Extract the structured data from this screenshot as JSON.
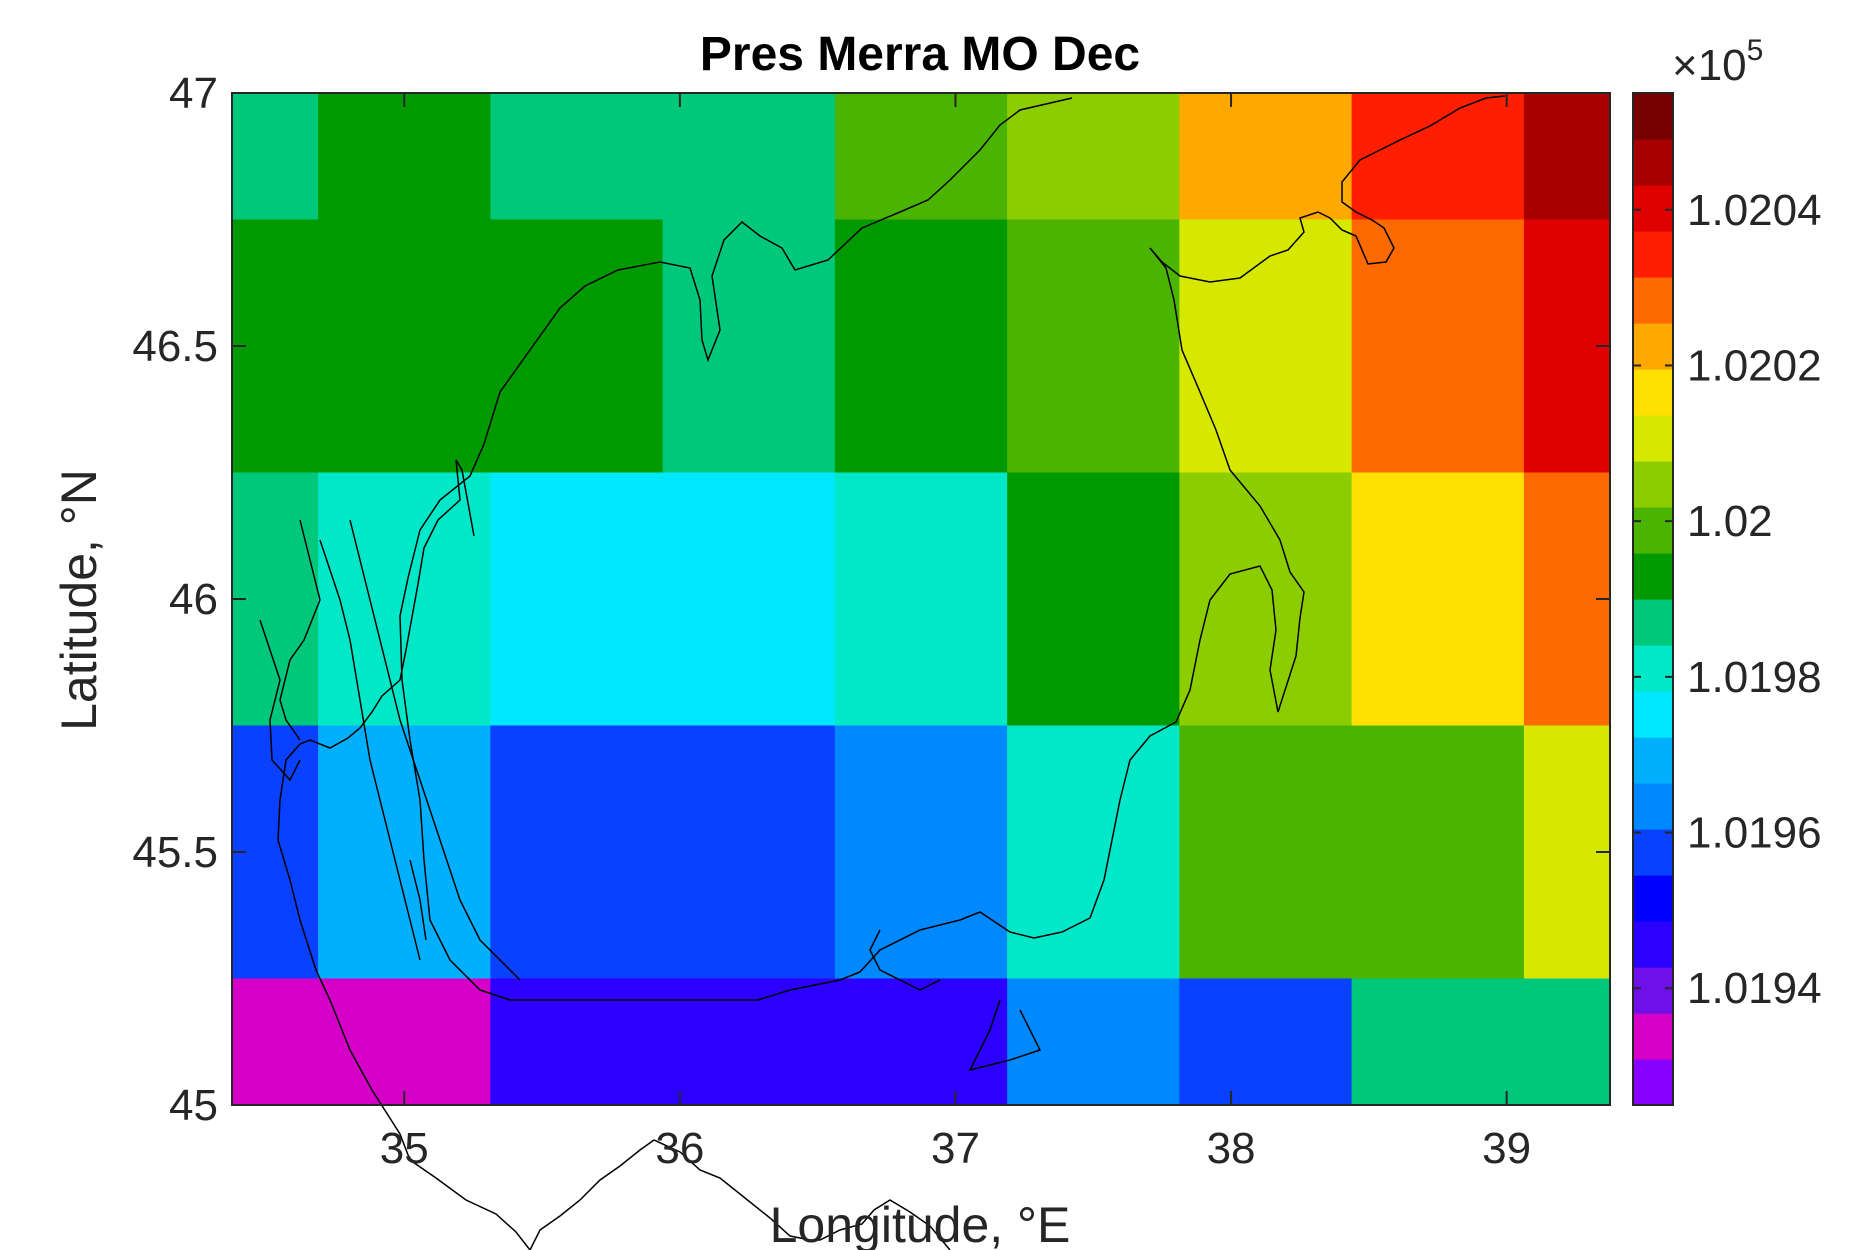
{
  "chart_data": {
    "type": "heatmap",
    "title": "Pres Merra MO Dec",
    "xlabel": "Longitude, °E",
    "ylabel": "Latitude, °N",
    "x_ticks": [
      35,
      36,
      37,
      38,
      39
    ],
    "y_ticks": [
      45,
      45.5,
      46,
      46.5,
      47
    ],
    "xlim": [
      34.375,
      39.375
    ],
    "ylim": [
      45,
      47
    ],
    "lon_edges": [
      34.375,
      34.6875,
      35.3125,
      35.9375,
      36.5625,
      37.1875,
      37.8125,
      38.4375,
      39.0625,
      39.375
    ],
    "lat_edges": [
      45,
      45.25,
      45.75,
      46.25,
      46.75,
      47
    ],
    "colorbar": {
      "exponent_label": "×10",
      "exponent": "5",
      "ticks": [
        1.0194,
        1.0196,
        1.0198,
        1.02,
        1.0202,
        1.0204
      ],
      "tick_labels": [
        "1.0194",
        "1.0196",
        "1.0198",
        "1.02",
        "1.0202",
        "1.0204"
      ],
      "range": [
        1.01925,
        1.02055
      ],
      "colormap": [
        "#8a00ff",
        "#d400c8",
        "#7010e8",
        "#2c00ff",
        "#0000ff",
        "#0a40ff",
        "#0088ff",
        "#00b0ff",
        "#00e8ff",
        "#00e8c8",
        "#00c87a",
        "#009a00",
        "#4ab400",
        "#8ccd00",
        "#d6e800",
        "#ffe000",
        "#ffa800",
        "#ff6a00",
        "#ff1e00",
        "#e00000",
        "#a80000",
        "#780000"
      ]
    },
    "values_rows_top_to_bottom": [
      [
        1.01985,
        1.01992,
        1.01989,
        1.01989,
        1.01998,
        1.02005,
        1.0202,
        1.02032,
        1.02045
      ],
      [
        1.01992,
        1.01992,
        1.0199,
        1.01989,
        1.01991,
        1.01998,
        1.02011,
        1.02029,
        1.02038
      ],
      [
        1.01987,
        1.01981,
        1.01977,
        1.01978,
        1.01981,
        1.01992,
        1.02004,
        1.02018,
        1.02028
      ],
      [
        1.01955,
        1.01967,
        1.01955,
        1.01958,
        1.01966,
        1.01983,
        1.01997,
        1.02,
        1.02012
      ],
      [
        1.01935,
        1.01932,
        1.01945,
        1.01945,
        1.01945,
        1.01962,
        1.01955,
        1.01985,
        1.01988
      ]
    ]
  }
}
